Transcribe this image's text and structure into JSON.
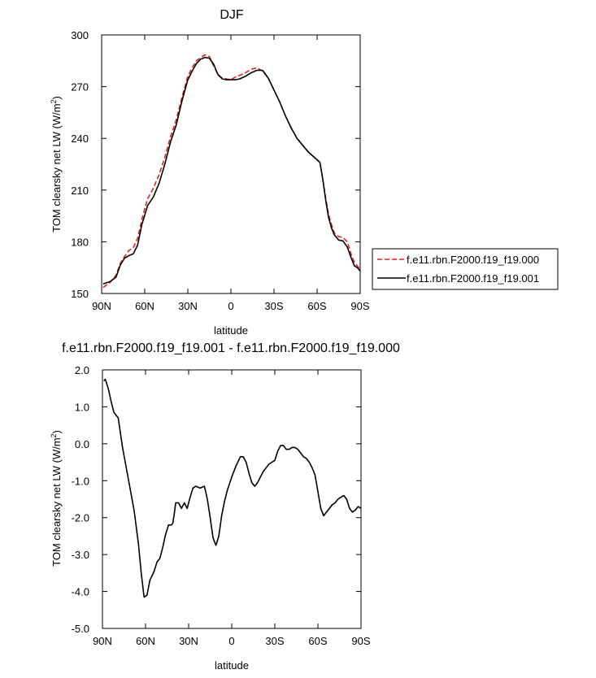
{
  "chart_data": [
    {
      "type": "line",
      "title": "DJF",
      "xlabel": "latitude",
      "ylabel_main": "TOM clearsky net LW (W/m",
      "ylabel_sup": "2",
      "ylabel_close": ")",
      "x_unit": "degrees latitude (90N = 90, 90S = -90)",
      "xlim": [
        90,
        -90
      ],
      "ylim": [
        150,
        300
      ],
      "x_ticks": [
        {
          "value": 90,
          "label": "90N"
        },
        {
          "value": 60,
          "label": "60N"
        },
        {
          "value": 30,
          "label": "30N"
        },
        {
          "value": 0,
          "label": "0"
        },
        {
          "value": -30,
          "label": "30S"
        },
        {
          "value": -60,
          "label": "60S"
        },
        {
          "value": -90,
          "label": "90S"
        }
      ],
      "y_ticks": [
        {
          "value": 150,
          "label": "150"
        },
        {
          "value": 180,
          "label": "180"
        },
        {
          "value": 210,
          "label": "210"
        },
        {
          "value": 240,
          "label": "240"
        },
        {
          "value": 270,
          "label": "270"
        },
        {
          "value": 300,
          "label": "300"
        }
      ],
      "legend": "right-bottom outside",
      "grid": false,
      "series": [
        {
          "name": "f.e11.rbn.F2000.f19_f19.000",
          "color": "#e0201b",
          "dash": "dashed",
          "x": [
            89,
            84,
            80,
            77,
            74,
            71,
            68,
            65,
            62,
            58,
            54,
            50,
            46,
            42,
            38,
            34,
            30,
            27,
            24,
            21,
            18,
            15,
            12,
            9,
            6,
            3,
            0,
            -3,
            -6,
            -10,
            -14,
            -18,
            -22,
            -26,
            -30,
            -34,
            -38,
            -42,
            -46,
            -50,
            -54,
            -58,
            -62,
            -64,
            -66,
            -68,
            -70,
            -72,
            -75,
            -78,
            -81,
            -84,
            -86,
            -88,
            -90
          ],
          "values": [
            153.5,
            156.5,
            160.5,
            167.5,
            171.5,
            175,
            176.5,
            182,
            193,
            205,
            211,
            219,
            229,
            241,
            251,
            264,
            276,
            281,
            285,
            287,
            288.5,
            287.5,
            282,
            277,
            275,
            274.5,
            274,
            275.5,
            276.5,
            278,
            280,
            281,
            279,
            275,
            268,
            261,
            253,
            246,
            240,
            236,
            232,
            229,
            226,
            216,
            205,
            196,
            190,
            185,
            183,
            182.5,
            180,
            172,
            168,
            166,
            164
          ]
        },
        {
          "name": "f.e11.rbn.F2000.f19_f19.001",
          "color": "#000000",
          "dash": "solid",
          "x": [
            89,
            84,
            80,
            77,
            74,
            71,
            68,
            65,
            62,
            58,
            54,
            50,
            46,
            42,
            38,
            34,
            30,
            27,
            24,
            21,
            18,
            15,
            12,
            9,
            6,
            3,
            0,
            -3,
            -6,
            -10,
            -14,
            -18,
            -22,
            -26,
            -30,
            -34,
            -38,
            -42,
            -46,
            -50,
            -54,
            -58,
            -62,
            -64,
            -66,
            -68,
            -70,
            -72,
            -75,
            -78,
            -81,
            -84,
            -86,
            -88,
            -90
          ],
          "values": [
            155.5,
            157,
            159.5,
            166.5,
            170.5,
            172,
            173,
            178,
            190,
            201,
            206,
            214,
            225,
            238,
            248,
            262,
            274,
            279,
            283.5,
            286,
            287,
            286.5,
            283,
            277,
            274.5,
            274,
            274,
            274,
            274.5,
            276,
            278,
            279.5,
            279.5,
            275,
            268,
            261,
            253,
            246,
            240,
            236,
            232,
            229,
            226,
            216,
            204,
            194,
            188,
            184,
            181,
            180.5,
            177,
            170,
            166,
            165,
            163
          ]
        }
      ]
    },
    {
      "type": "line",
      "title": "f.e11.rbn.F2000.f19_f19.001 - f.e11.rbn.F2000.f19_f19.000",
      "xlabel": "latitude",
      "ylabel_main": "TOM clearsky net LW (W/m",
      "ylabel_sup": "2",
      "ylabel_close": ")",
      "x_unit": "degrees latitude (90N = 90, 90S = -90)",
      "xlim": [
        90,
        -90
      ],
      "ylim": [
        -5.0,
        2.0
      ],
      "x_ticks": [
        {
          "value": 90,
          "label": "90N"
        },
        {
          "value": 60,
          "label": "60N"
        },
        {
          "value": 30,
          "label": "30N"
        },
        {
          "value": 0,
          "label": "0"
        },
        {
          "value": -30,
          "label": "30S"
        },
        {
          "value": -60,
          "label": "60S"
        },
        {
          "value": -90,
          "label": "90S"
        }
      ],
      "y_ticks": [
        {
          "value": -5.0,
          "label": "-5.0"
        },
        {
          "value": -4.0,
          "label": "-4.0"
        },
        {
          "value": -3.0,
          "label": "-3.0"
        },
        {
          "value": -2.0,
          "label": "-2.0"
        },
        {
          "value": -1.0,
          "label": "-1.0"
        },
        {
          "value": 0.0,
          "label": "0.0"
        },
        {
          "value": 1.0,
          "label": "1.0"
        },
        {
          "value": 2.0,
          "label": "2.0"
        }
      ],
      "grid": false,
      "series": [
        {
          "color": "#000000",
          "dash": "solid",
          "x": [
            89,
            88,
            86,
            84,
            82,
            79,
            76,
            72,
            68,
            65,
            63,
            61,
            59,
            57,
            54,
            52,
            50,
            48,
            46,
            44,
            42,
            41,
            40,
            39,
            37,
            35,
            33,
            31,
            29,
            27,
            25,
            22,
            19,
            17,
            15,
            13,
            11,
            9,
            7,
            5,
            3,
            0,
            -3,
            -6,
            -8,
            -10,
            -12,
            -14,
            -16,
            -18,
            -20,
            -22,
            -24,
            -26,
            -28,
            -30,
            -32,
            -34,
            -36,
            -38,
            -40,
            -42,
            -44,
            -46,
            -48,
            -50,
            -52,
            -54,
            -56,
            -58,
            -60,
            -62,
            -64,
            -66,
            -68,
            -70,
            -72,
            -74,
            -76,
            -78,
            -80,
            -82,
            -84,
            -86,
            -88,
            -90
          ],
          "values": [
            1.7,
            1.75,
            1.5,
            1.15,
            0.85,
            0.7,
            -0.1,
            -0.95,
            -1.8,
            -2.7,
            -3.5,
            -4.15,
            -4.1,
            -3.7,
            -3.45,
            -3.2,
            -3.1,
            -2.8,
            -2.45,
            -2.2,
            -2.2,
            -2.15,
            -1.9,
            -1.6,
            -1.6,
            -1.75,
            -1.6,
            -1.75,
            -1.45,
            -1.2,
            -1.15,
            -1.2,
            -1.15,
            -1.5,
            -2.0,
            -2.55,
            -2.75,
            -2.5,
            -1.95,
            -1.55,
            -1.25,
            -0.9,
            -0.6,
            -0.35,
            -0.35,
            -0.5,
            -0.8,
            -1.05,
            -1.15,
            -1.05,
            -0.9,
            -0.75,
            -0.65,
            -0.55,
            -0.5,
            -0.45,
            -0.2,
            -0.05,
            -0.05,
            -0.15,
            -0.15,
            -0.1,
            -0.1,
            -0.15,
            -0.25,
            -0.35,
            -0.4,
            -0.5,
            -0.65,
            -0.85,
            -1.3,
            -1.75,
            -1.95,
            -1.85,
            -1.75,
            -1.65,
            -1.6,
            -1.5,
            -1.45,
            -1.4,
            -1.5,
            -1.75,
            -1.85,
            -1.8,
            -1.7,
            -1.75
          ]
        }
      ]
    }
  ]
}
